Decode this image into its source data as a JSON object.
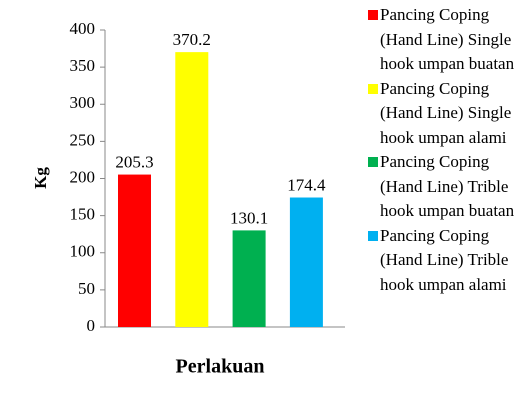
{
  "chart_data": {
    "type": "bar",
    "ylabel": "Kg",
    "xlabel": "Perlakuan",
    "categories": [
      null
    ],
    "series": [
      {
        "name": "Pancing Coping (Hand Line) Single hook umpan buatan",
        "color": "#ff0000",
        "values": [
          205.3
        ]
      },
      {
        "name": "Pancing Coping (Hand Line) Single hook umpan alami",
        "color": "#ffff00",
        "values": [
          370.2
        ]
      },
      {
        "name": "Pancing Coping (Hand Line) Trible hook umpan buatan",
        "color": "#00b050",
        "values": [
          130.1
        ]
      },
      {
        "name": "Pancing Coping (Hand Line) Trible hook umpan alami",
        "color": "#00b0f0",
        "values": [
          174.4
        ]
      }
    ],
    "ylim": [
      0,
      400
    ],
    "yticks": [
      0,
      50,
      100,
      150,
      200,
      250,
      300,
      350,
      400
    ],
    "legend": "right",
    "grid": false
  }
}
